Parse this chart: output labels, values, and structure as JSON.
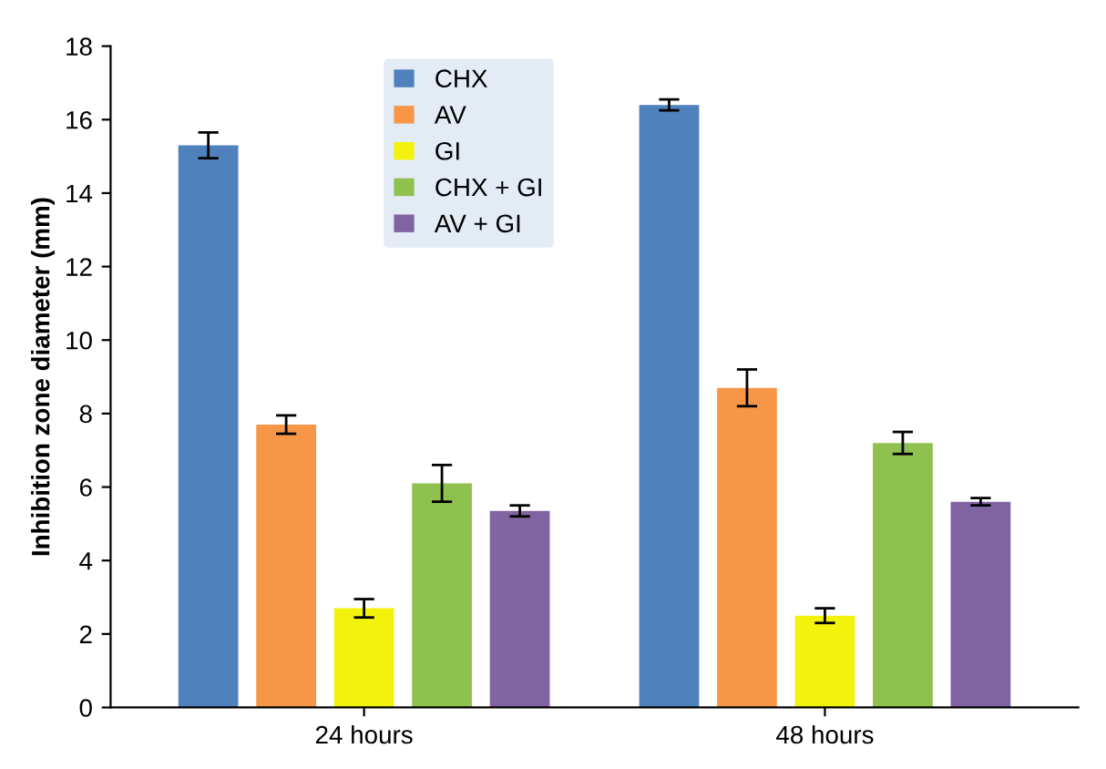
{
  "chart_data": {
    "type": "bar",
    "ylabel": "Inhibition zone diameter (mm)",
    "categories": [
      "24 hours",
      "48 hours"
    ],
    "series": [
      {
        "name": "CHX",
        "color": "#4f81bd",
        "values": [
          15.3,
          16.4
        ],
        "errors": [
          0.35,
          0.15
        ]
      },
      {
        "name": "AV",
        "color": "#f79646",
        "values": [
          7.7,
          8.7
        ],
        "errors": [
          0.25,
          0.5
        ]
      },
      {
        "name": "GI",
        "color": "#f2f20c",
        "values": [
          2.7,
          2.5
        ],
        "errors": [
          0.25,
          0.2
        ]
      },
      {
        "name": "CHX + GI",
        "color": "#8fc14f",
        "values": [
          6.1,
          7.2
        ],
        "errors": [
          0.5,
          0.3
        ]
      },
      {
        "name": "AV + GI",
        "color": "#8064a2",
        "values": [
          5.35,
          5.6
        ],
        "errors": [
          0.15,
          0.1
        ]
      }
    ],
    "ylim": [
      0,
      18
    ],
    "yticks": [
      0,
      2,
      4,
      6,
      8,
      10,
      12,
      14,
      16,
      18
    ],
    "grid": false,
    "legend": "top"
  }
}
